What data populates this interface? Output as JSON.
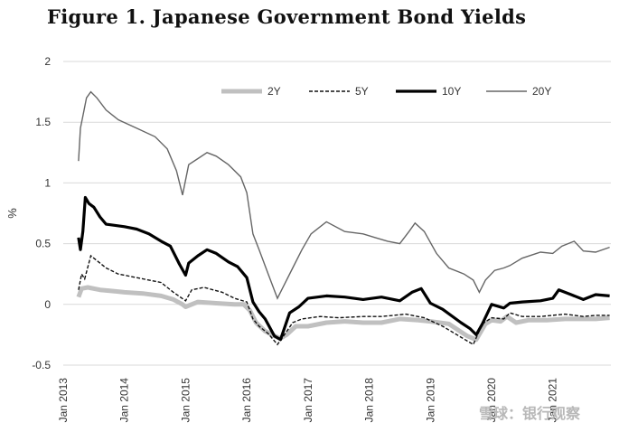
{
  "title": "Figure 1.  Japanese Government Bond Yields",
  "watermark": "雪球：银行观察",
  "chart_data": {
    "type": "line",
    "ylabel": "%",
    "ylim": [
      -0.5,
      2
    ],
    "yticks": [
      2,
      1.5,
      1,
      0.5,
      0,
      -0.5
    ],
    "ytick_labels": [
      "2",
      "1.5",
      "1",
      "0.5",
      "0",
      "-0.5"
    ],
    "xlim": [
      2013.0,
      2021.95
    ],
    "xticks": [
      2013,
      2014,
      2015,
      2016,
      2017,
      2018,
      2019,
      2020,
      2021
    ],
    "xtick_labels": [
      "Jan 2013",
      "Jan 2014",
      "Jan 2015",
      "Jan 2016",
      "Jan 2017",
      "Jan 2018",
      "Jan 2019",
      "Jan 2020",
      "Jan 2021"
    ],
    "grid": "horizontal",
    "legend_position": "top-right",
    "series": [
      {
        "name": "2Y",
        "color": "#c0c0c0",
        "style": "thick-light",
        "x": [
          2013.25,
          2013.3,
          2013.4,
          2013.6,
          2013.8,
          2014.0,
          2014.3,
          2014.6,
          2014.8,
          2014.95,
          2015.0,
          2015.2,
          2015.5,
          2015.8,
          2015.95,
          2016.05,
          2016.15,
          2016.3,
          2016.45,
          2016.55,
          2016.65,
          2016.8,
          2017.0,
          2017.3,
          2017.6,
          2017.9,
          2018.2,
          2018.5,
          2018.8,
          2019.0,
          2019.3,
          2019.6,
          2019.75,
          2019.9,
          2020.0,
          2020.15,
          2020.25,
          2020.4,
          2020.6,
          2020.9,
          2021.2,
          2021.5,
          2021.7,
          2021.93
        ],
        "y": [
          0.06,
          0.13,
          0.14,
          0.12,
          0.11,
          0.1,
          0.09,
          0.07,
          0.04,
          0.0,
          -0.02,
          0.02,
          0.01,
          0.0,
          0.0,
          -0.05,
          -0.15,
          -0.22,
          -0.26,
          -0.28,
          -0.25,
          -0.18,
          -0.18,
          -0.15,
          -0.14,
          -0.15,
          -0.15,
          -0.12,
          -0.13,
          -0.14,
          -0.16,
          -0.26,
          -0.29,
          -0.16,
          -0.13,
          -0.14,
          -0.1,
          -0.15,
          -0.13,
          -0.13,
          -0.12,
          -0.12,
          -0.12,
          -0.11
        ]
      },
      {
        "name": "5Y",
        "color": "#111111",
        "style": "dashed",
        "x": [
          2013.25,
          2013.3,
          2013.35,
          2013.45,
          2013.7,
          2013.9,
          2014.2,
          2014.6,
          2014.8,
          2015.0,
          2015.1,
          2015.3,
          2015.6,
          2015.8,
          2016.0,
          2016.1,
          2016.2,
          2016.35,
          2016.5,
          2016.6,
          2016.75,
          2016.9,
          2017.2,
          2017.5,
          2017.9,
          2018.2,
          2018.6,
          2018.9,
          2019.2,
          2019.5,
          2019.7,
          2019.85,
          2020.0,
          2020.2,
          2020.3,
          2020.5,
          2020.8,
          2021.0,
          2021.2,
          2021.5,
          2021.7,
          2021.93
        ],
        "y": [
          0.12,
          0.25,
          0.21,
          0.4,
          0.3,
          0.25,
          0.22,
          0.18,
          0.1,
          0.03,
          0.12,
          0.14,
          0.1,
          0.05,
          0.02,
          -0.12,
          -0.18,
          -0.24,
          -0.33,
          -0.26,
          -0.15,
          -0.12,
          -0.1,
          -0.11,
          -0.1,
          -0.1,
          -0.08,
          -0.11,
          -0.18,
          -0.27,
          -0.33,
          -0.16,
          -0.11,
          -0.12,
          -0.07,
          -0.1,
          -0.1,
          -0.09,
          -0.08,
          -0.1,
          -0.09,
          -0.09
        ]
      },
      {
        "name": "10Y",
        "color": "#000000",
        "style": "thick",
        "x": [
          2013.25,
          2013.28,
          2013.32,
          2013.36,
          2013.42,
          2013.5,
          2013.6,
          2013.7,
          2013.85,
          2014.0,
          2014.2,
          2014.4,
          2014.6,
          2014.75,
          2014.9,
          2015.0,
          2015.05,
          2015.2,
          2015.35,
          2015.5,
          2015.7,
          2015.85,
          2016.0,
          2016.1,
          2016.2,
          2016.3,
          2016.45,
          2016.55,
          2016.7,
          2016.85,
          2017.0,
          2017.3,
          2017.6,
          2017.9,
          2018.2,
          2018.5,
          2018.7,
          2018.85,
          2019.0,
          2019.2,
          2019.5,
          2019.65,
          2019.75,
          2019.85,
          2020.0,
          2020.2,
          2020.3,
          2020.5,
          2020.8,
          2021.0,
          2021.1,
          2021.3,
          2021.5,
          2021.7,
          2021.93
        ],
        "y": [
          0.55,
          0.45,
          0.6,
          0.88,
          0.83,
          0.8,
          0.72,
          0.66,
          0.65,
          0.64,
          0.62,
          0.58,
          0.52,
          0.48,
          0.33,
          0.24,
          0.34,
          0.4,
          0.45,
          0.42,
          0.35,
          0.31,
          0.22,
          0.02,
          -0.06,
          -0.12,
          -0.26,
          -0.29,
          -0.07,
          -0.02,
          0.05,
          0.07,
          0.06,
          0.04,
          0.06,
          0.03,
          0.1,
          0.13,
          0.01,
          -0.04,
          -0.15,
          -0.2,
          -0.25,
          -0.16,
          0.0,
          -0.03,
          0.01,
          0.02,
          0.03,
          0.05,
          0.12,
          0.08,
          0.04,
          0.08,
          0.07
        ]
      },
      {
        "name": "20Y",
        "color": "#666666",
        "style": "thin",
        "x": [
          2013.25,
          2013.28,
          2013.32,
          2013.38,
          2013.45,
          2013.55,
          2013.7,
          2013.9,
          2014.2,
          2014.5,
          2014.7,
          2014.85,
          2014.95,
          2015.05,
          2015.2,
          2015.35,
          2015.5,
          2015.7,
          2015.9,
          2016.0,
          2016.1,
          2016.2,
          2016.35,
          2016.5,
          2016.6,
          2016.75,
          2016.9,
          2017.05,
          2017.3,
          2017.6,
          2017.9,
          2018.1,
          2018.3,
          2018.5,
          2018.65,
          2018.75,
          2018.9,
          2019.1,
          2019.3,
          2019.55,
          2019.7,
          2019.8,
          2019.9,
          2020.05,
          2020.2,
          2020.3,
          2020.5,
          2020.8,
          2021.0,
          2021.15,
          2021.35,
          2021.5,
          2021.7,
          2021.93
        ],
        "y": [
          1.18,
          1.45,
          1.55,
          1.7,
          1.75,
          1.7,
          1.6,
          1.52,
          1.45,
          1.38,
          1.28,
          1.1,
          0.9,
          1.15,
          1.2,
          1.25,
          1.22,
          1.15,
          1.05,
          0.92,
          0.58,
          0.45,
          0.25,
          0.05,
          0.15,
          0.3,
          0.45,
          0.58,
          0.68,
          0.6,
          0.58,
          0.55,
          0.52,
          0.5,
          0.6,
          0.67,
          0.6,
          0.42,
          0.3,
          0.25,
          0.2,
          0.1,
          0.2,
          0.28,
          0.3,
          0.32,
          0.38,
          0.43,
          0.42,
          0.48,
          0.52,
          0.44,
          0.43,
          0.47
        ]
      }
    ]
  }
}
